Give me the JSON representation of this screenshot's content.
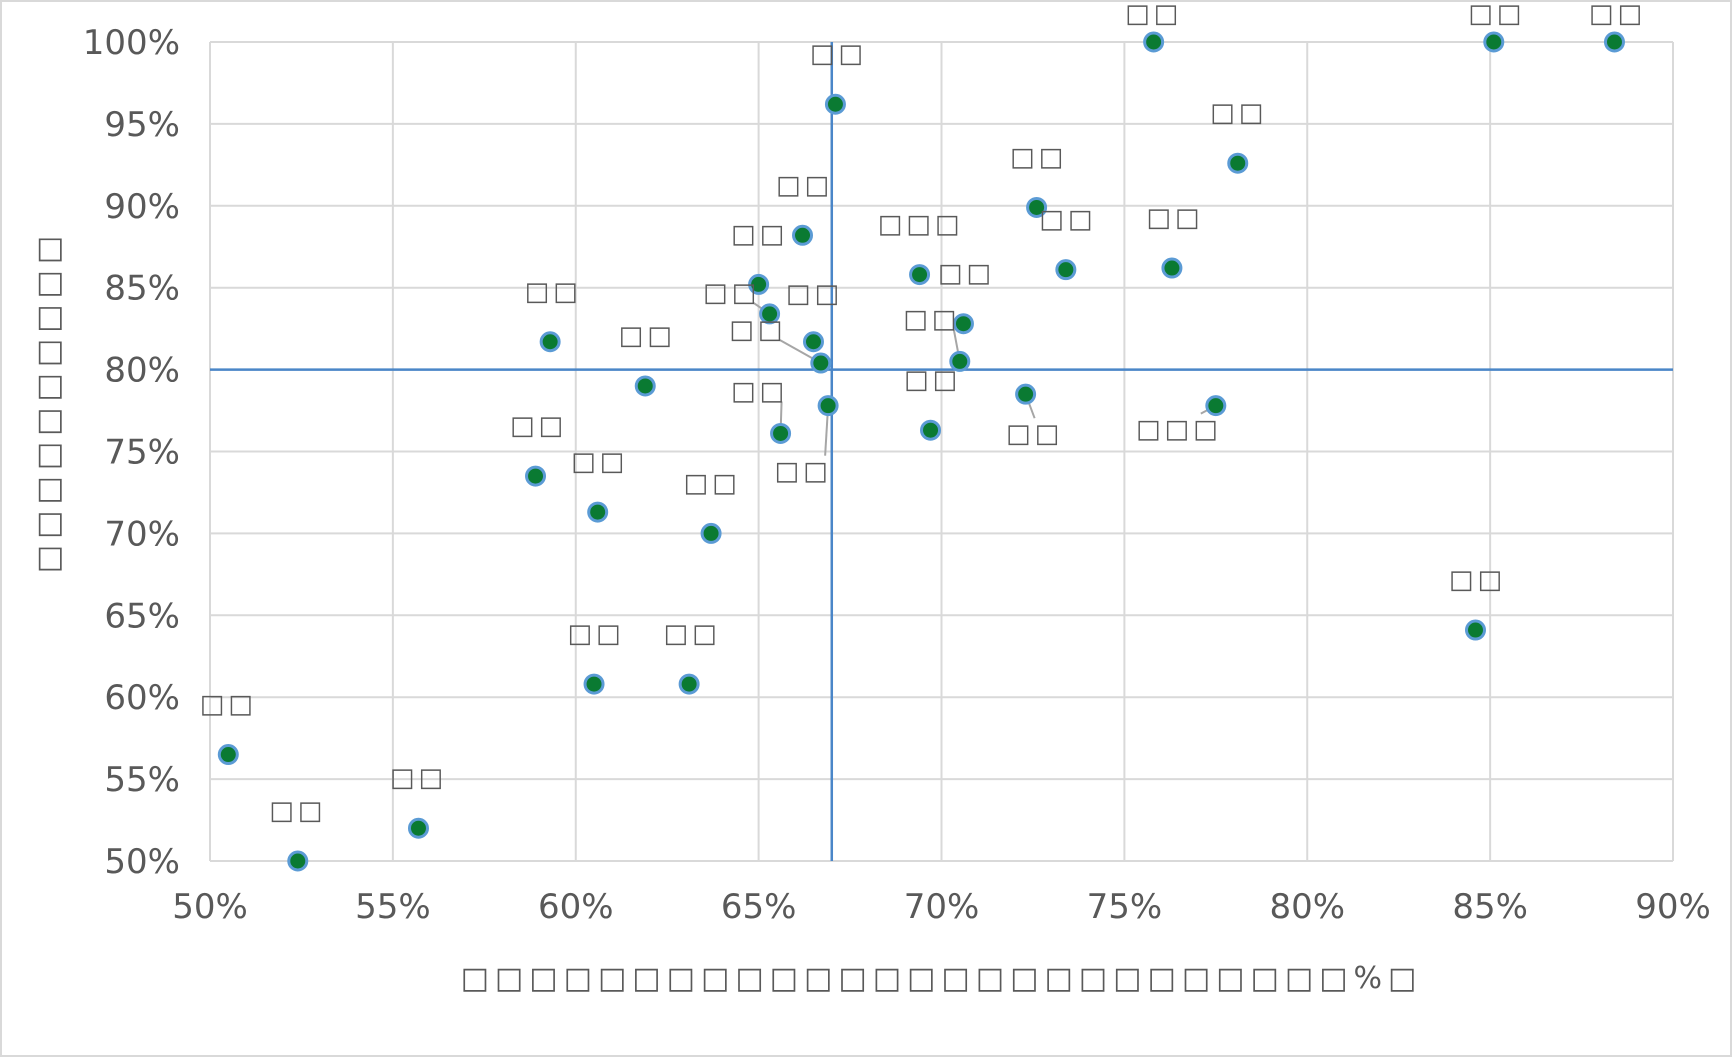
{
  "chart_data": {
    "type": "scatter",
    "title": "",
    "xlabel": "□□□□□□□□□□□□□□□□□□□□□□□□□□%□",
    "ylabel": "□□□□□□□□□□",
    "xlim": [
      0.5,
      0.9
    ],
    "ylim": [
      0.5,
      1.0
    ],
    "x_ticks": [
      0.5,
      0.55,
      0.6,
      0.65,
      0.7,
      0.75,
      0.8,
      0.85,
      0.9
    ],
    "y_ticks": [
      0.5,
      0.55,
      0.6,
      0.65,
      0.7,
      0.75,
      0.8,
      0.85,
      0.9,
      0.95,
      1.0
    ],
    "x_tick_labels": [
      "50%",
      "55%",
      "60%",
      "65%",
      "70%",
      "75%",
      "80%",
      "85%",
      "90%"
    ],
    "y_tick_labels": [
      "50%",
      "55%",
      "60%",
      "65%",
      "70%",
      "75%",
      "80%",
      "85%",
      "90%",
      "95%",
      "100%"
    ],
    "grid": true,
    "reference_lines": {
      "x": 0.67,
      "y": 0.8
    },
    "colors": {
      "marker_fill": "#0a7a32",
      "marker_edge": "#5b9bd5",
      "reference_line": "#4a86c8",
      "grid": "#d9d9d9",
      "text": "#595959",
      "leader": "#a6a6a6"
    },
    "points": [
      {
        "label": "□□",
        "x": 0.505,
        "y": 0.565
      },
      {
        "label": "□□",
        "x": 0.524,
        "y": 0.5
      },
      {
        "label": "□□",
        "x": 0.557,
        "y": 0.52
      },
      {
        "label": "□□",
        "x": 0.589,
        "y": 0.735
      },
      {
        "label": "□□",
        "x": 0.593,
        "y": 0.817
      },
      {
        "label": "□□",
        "x": 0.605,
        "y": 0.608
      },
      {
        "label": "□□",
        "x": 0.606,
        "y": 0.713
      },
      {
        "label": "□□",
        "x": 0.619,
        "y": 0.79
      },
      {
        "label": "□□",
        "x": 0.631,
        "y": 0.608
      },
      {
        "label": "□□",
        "x": 0.637,
        "y": 0.7
      },
      {
        "label": "□□",
        "x": 0.65,
        "y": 0.852
      },
      {
        "label": "□□",
        "x": 0.653,
        "y": 0.834
      },
      {
        "label": "□□",
        "x": 0.656,
        "y": 0.761
      },
      {
        "label": "□□",
        "x": 0.662,
        "y": 0.882
      },
      {
        "label": "□□",
        "x": 0.665,
        "y": 0.817
      },
      {
        "label": "□□",
        "x": 0.667,
        "y": 0.804
      },
      {
        "label": "□□",
        "x": 0.669,
        "y": 0.778
      },
      {
        "label": "□□",
        "x": 0.671,
        "y": 0.962
      },
      {
        "label": "□□□",
        "x": 0.694,
        "y": 0.858
      },
      {
        "label": "□□",
        "x": 0.697,
        "y": 0.763
      },
      {
        "label": "□□",
        "x": 0.705,
        "y": 0.805
      },
      {
        "label": "□□",
        "x": 0.706,
        "y": 0.828
      },
      {
        "label": "□□",
        "x": 0.723,
        "y": 0.785
      },
      {
        "label": "□□",
        "x": 0.726,
        "y": 0.899
      },
      {
        "label": "□□",
        "x": 0.734,
        "y": 0.861
      },
      {
        "label": "□□",
        "x": 0.758,
        "y": 1.0
      },
      {
        "label": "□□",
        "x": 0.763,
        "y": 0.862
      },
      {
        "label": "□□□",
        "x": 0.775,
        "y": 0.778
      },
      {
        "label": "□□",
        "x": 0.781,
        "y": 0.926
      },
      {
        "label": "□□",
        "x": 0.846,
        "y": 0.641
      },
      {
        "label": "□□",
        "x": 0.851,
        "y": 1.0
      },
      {
        "label": "□□",
        "x": 0.884,
        "y": 1.0
      }
    ]
  }
}
